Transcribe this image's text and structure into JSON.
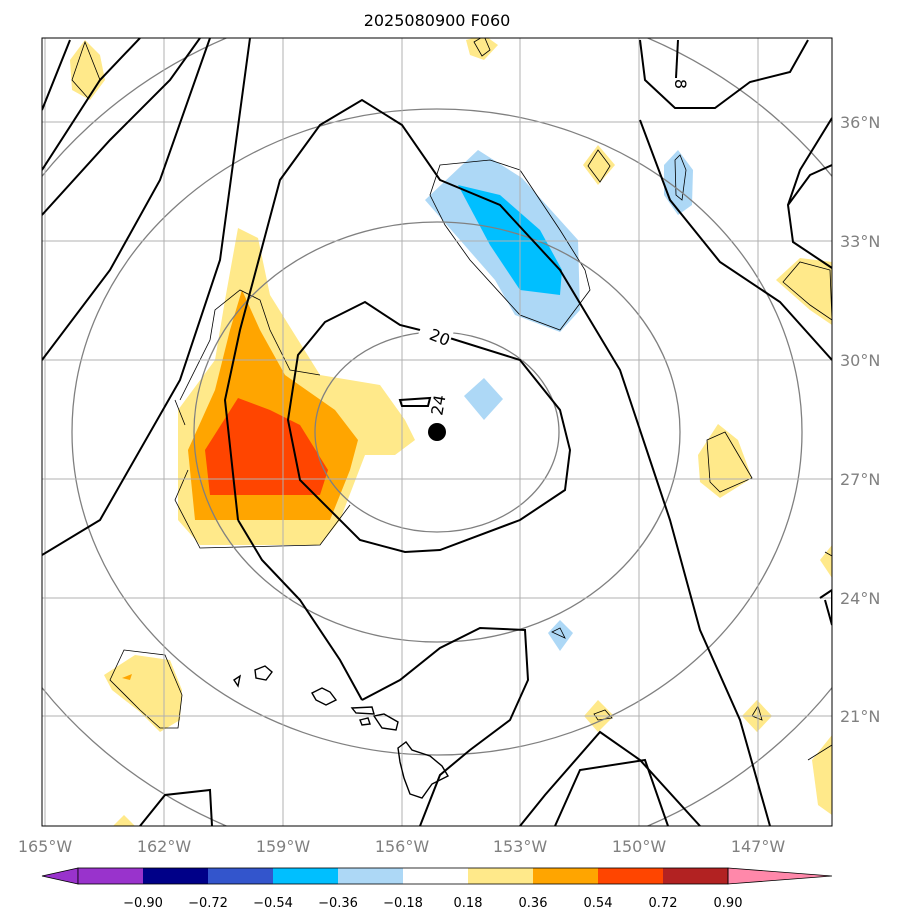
{
  "title": "2025080900 F060",
  "lat_labels": [
    "36°N",
    "33°N",
    "30°N",
    "27°N",
    "24°N",
    "21°N"
  ],
  "lon_labels": [
    "165°W",
    "162°W",
    "159°W",
    "156°W",
    "153°W",
    "150°W",
    "147°W"
  ],
  "contour_labels": [
    "20",
    "24",
    "8"
  ],
  "center_marker": {
    "lat": 28.2,
    "lon": -155.1
  },
  "colorbar": {
    "ticks": [
      "−0.90",
      "−0.72",
      "−0.54",
      "−0.36",
      "−0.18",
      "0.18",
      "0.36",
      "0.54",
      "0.72",
      "0.90"
    ],
    "colors": [
      "#9933cc",
      "#000088",
      "#3355cc",
      "#00bfff",
      "#add8f6",
      "#ffffff",
      "#ffe98a",
      "#ffa500",
      "#ff4500",
      "#b22222",
      "#ff88aa"
    ]
  },
  "shading_colors": {
    "neg_light": "#add8f6",
    "neg_mid": "#00bfff",
    "pos_light": "#ffe98a",
    "pos_mid": "#ffa500",
    "pos_strong": "#ff4500"
  }
}
